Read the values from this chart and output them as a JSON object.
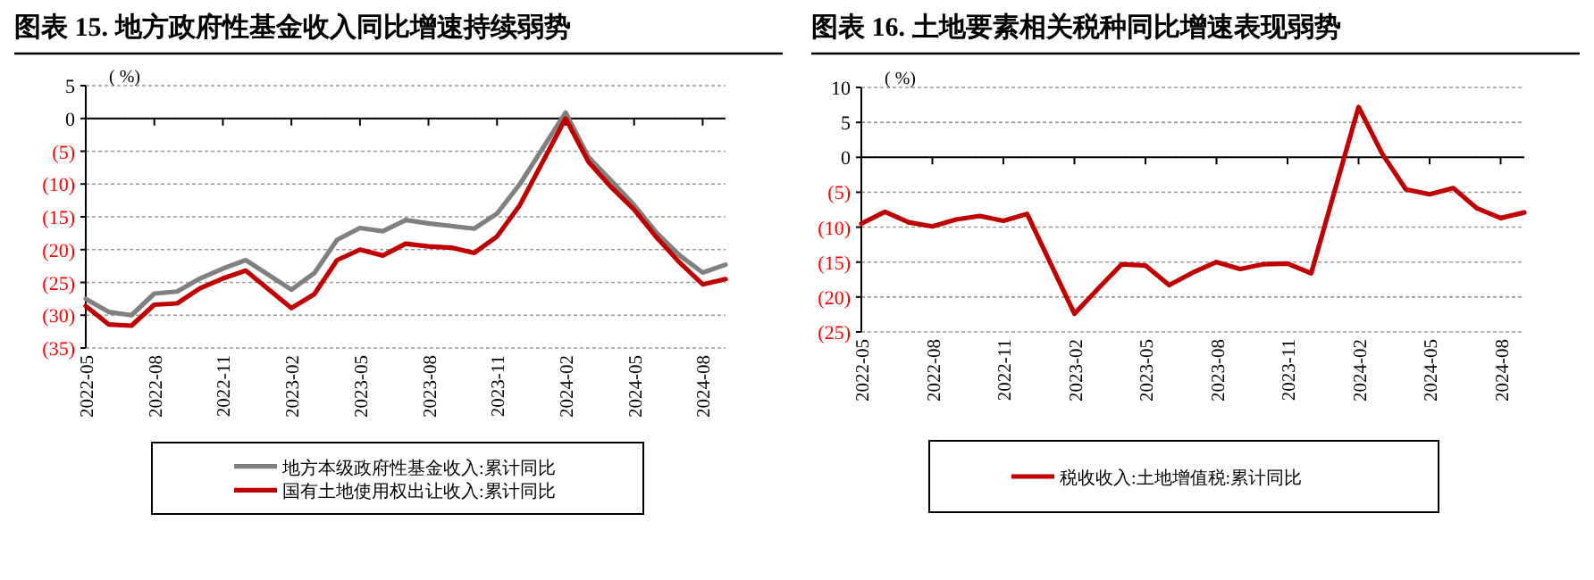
{
  "chart_data": [
    {
      "type": "line",
      "title": "图表 15. 地方政府性基金收入同比增速持续弱势",
      "ylabel": "( %)",
      "ylim": [
        -35,
        5
      ],
      "yticks": [
        5,
        0,
        {
          "value": -5,
          "label": "(5)"
        },
        {
          "value": -10,
          "label": "(10)"
        },
        {
          "value": -15,
          "label": "(15)"
        },
        {
          "value": -20,
          "label": "(20)"
        },
        {
          "value": -25,
          "label": "(25)"
        },
        {
          "value": -30,
          "label": "(30)"
        },
        {
          "value": -35,
          "label": "(35)"
        }
      ],
      "xlim": [
        "2022-05",
        "2024-09"
      ],
      "xticks": [
        "2022-05",
        "2022-08",
        "2022-11",
        "2023-02",
        "2023-05",
        "2023-08",
        "2023-11",
        "2024-02",
        "2024-05",
        "2024-08"
      ],
      "x": [
        "2022-05",
        "2022-06",
        "2022-07",
        "2022-08",
        "2022-09",
        "2022-10",
        "2022-11",
        "2022-12",
        "2023-02",
        "2023-03",
        "2023-04",
        "2023-05",
        "2023-06",
        "2023-07",
        "2023-08",
        "2023-09",
        "2023-10",
        "2023-11",
        "2023-12",
        "2024-02",
        "2024-03",
        "2024-04",
        "2024-05",
        "2024-06",
        "2024-07",
        "2024-08",
        "2024-09"
      ],
      "grid": "y",
      "legend": "bottom",
      "series": [
        {
          "name": "地方本级政府性基金收入:累计同比",
          "color": "#808080",
          "values": [
            -27.5,
            -29.5,
            -30,
            -26.7,
            -26.4,
            -24.4,
            -22.9,
            -21.6,
            -26.1,
            -23.6,
            -18.5,
            -16.7,
            -17.2,
            -15.5,
            -16,
            -16.4,
            -16.8,
            -14.5,
            -10,
            0.9,
            -5.9,
            -9.5,
            -13.2,
            -17.5,
            -20.9,
            -23.5,
            -22.3
          ]
        },
        {
          "name": "国有土地使用权出让收入:累计同比",
          "color": "#c00000",
          "values": [
            -28.6,
            -31.4,
            -31.6,
            -28.4,
            -28.2,
            -25.9,
            -24.4,
            -23.2,
            -28.9,
            -26.8,
            -21.6,
            -20,
            -20.9,
            -19.1,
            -19.5,
            -19.7,
            -20.5,
            -18,
            -13.2,
            0,
            -6.6,
            -10.5,
            -13.9,
            -18.2,
            -22,
            -25.3,
            -24.5
          ]
        }
      ]
    },
    {
      "type": "line",
      "title": "图表 16. 土地要素相关税种同比增速表现弱势",
      "ylabel": "( %)",
      "ylim": [
        -25,
        10
      ],
      "yticks": [
        10,
        5,
        0,
        {
          "value": -5,
          "label": "(5)"
        },
        {
          "value": -10,
          "label": "(10)"
        },
        {
          "value": -15,
          "label": "(15)"
        },
        {
          "value": -20,
          "label": "(20)"
        },
        {
          "value": -25,
          "label": "(25)"
        }
      ],
      "xlim": [
        "2022-05",
        "2024-09"
      ],
      "xticks": [
        "2022-05",
        "2022-08",
        "2022-11",
        "2023-02",
        "2023-05",
        "2023-08",
        "2023-11",
        "2024-02",
        "2024-05",
        "2024-08"
      ],
      "x": [
        "2022-05",
        "2022-06",
        "2022-07",
        "2022-08",
        "2022-09",
        "2022-10",
        "2022-11",
        "2022-12",
        "2023-02",
        "2023-03",
        "2023-04",
        "2023-05",
        "2023-06",
        "2023-07",
        "2023-08",
        "2023-09",
        "2023-10",
        "2023-11",
        "2023-12",
        "2024-02",
        "2024-03",
        "2024-04",
        "2024-05",
        "2024-06",
        "2024-07",
        "2024-08",
        "2024-09"
      ],
      "grid": "y",
      "legend": "bottom",
      "series": [
        {
          "name": "税收收入:土地增值税:累计同比",
          "color": "#c00000",
          "values": [
            -9.5,
            -7.8,
            -9.3,
            -9.9,
            -8.9,
            -8.4,
            -9.1,
            -8.1,
            -22.4,
            -18.8,
            -15.3,
            -15.5,
            -18.3,
            -16.5,
            -15,
            -16,
            -15.3,
            -15.2,
            -16.6,
            7.2,
            0.5,
            -4.6,
            -5.3,
            -4.4,
            -7.3,
            -8.7,
            -7.9
          ]
        }
      ]
    }
  ]
}
